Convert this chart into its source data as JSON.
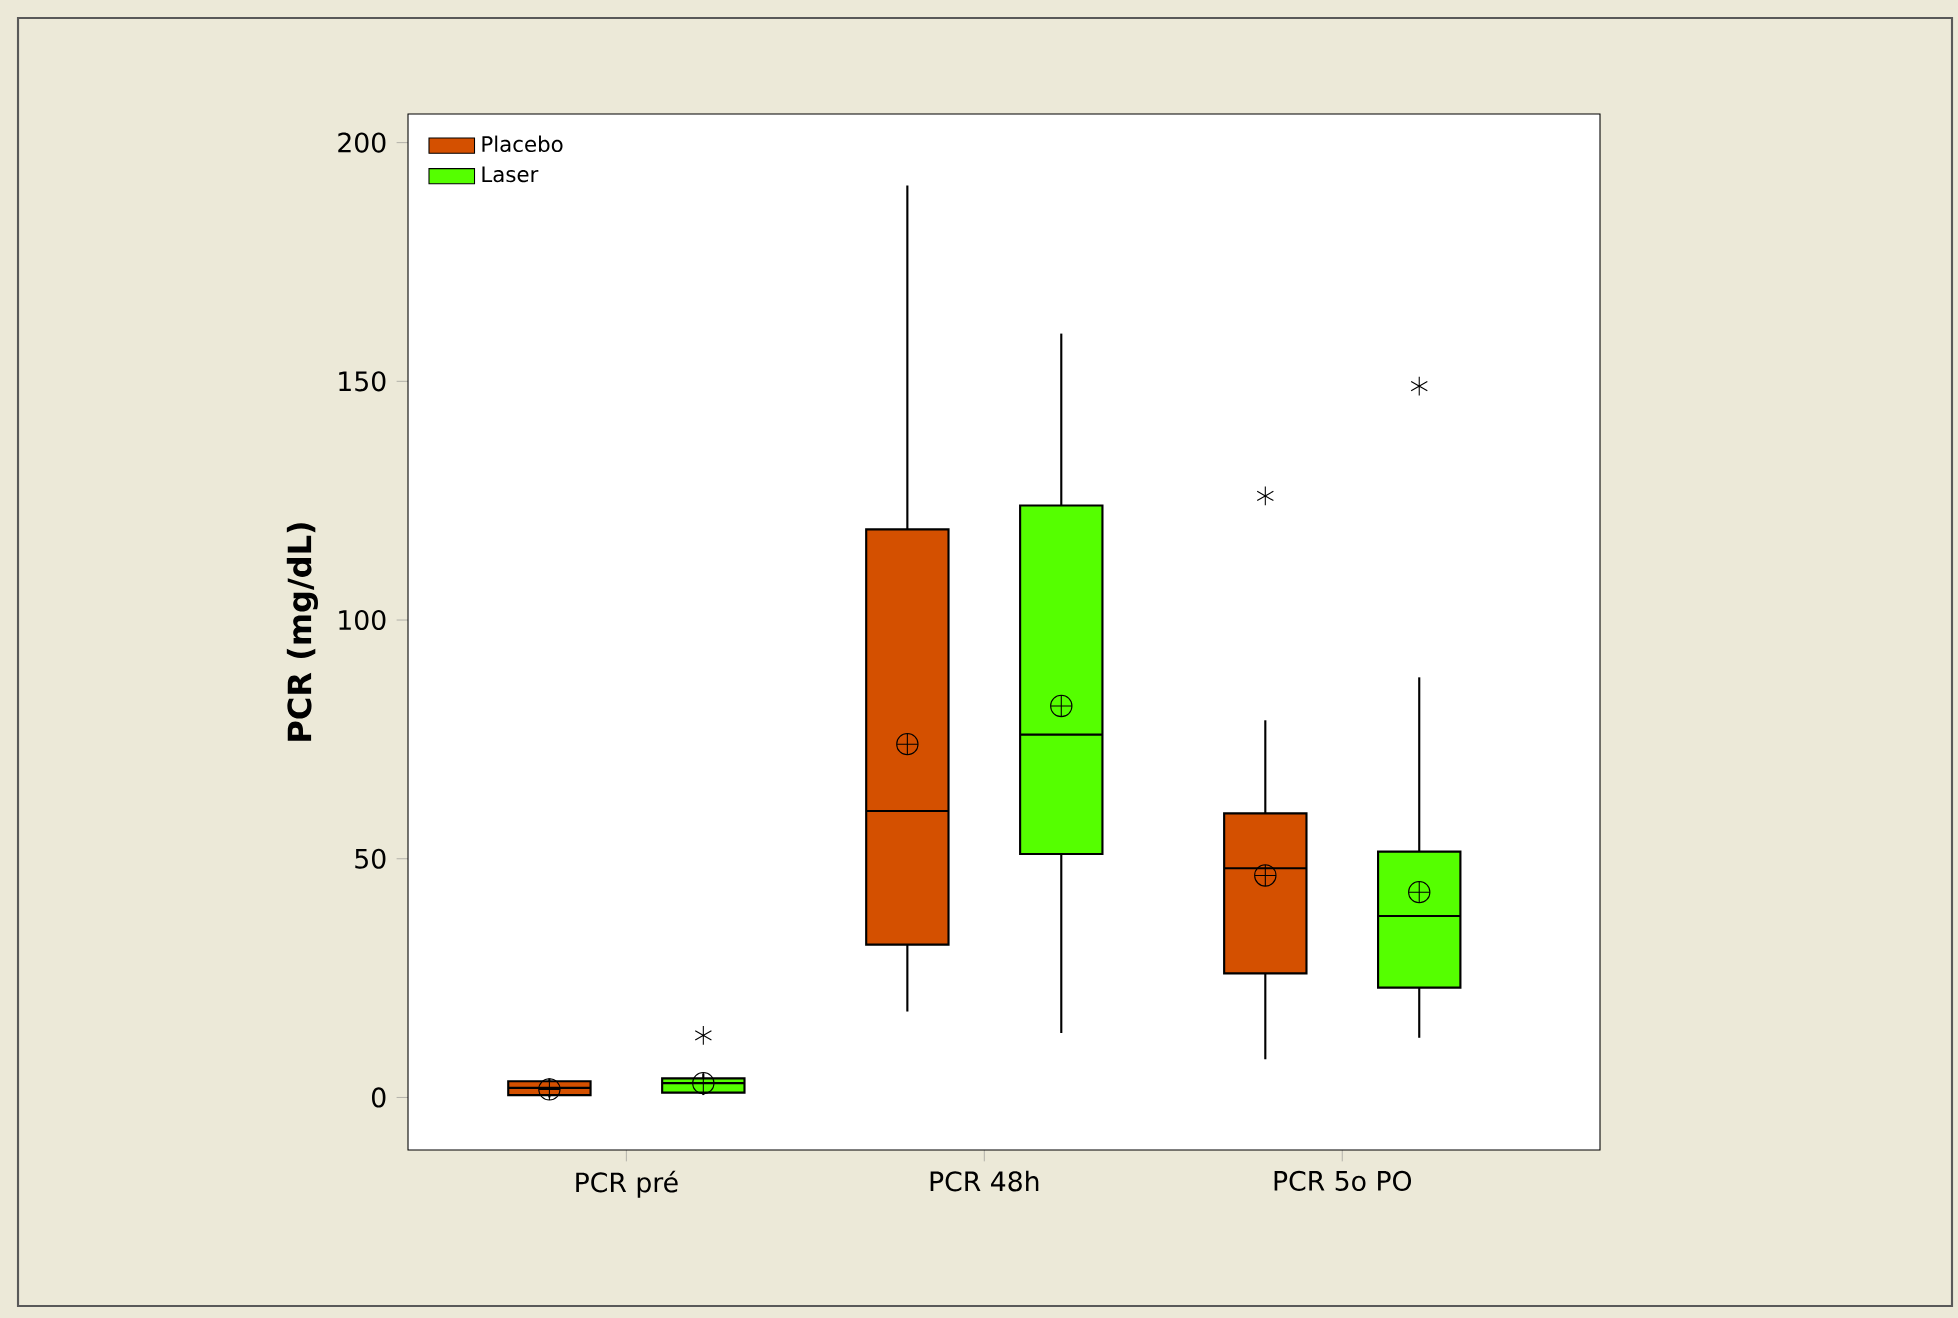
{
  "chart_data": {
    "type": "box",
    "ylabel": "PCR (mg/dL)",
    "categories": [
      "PCR pré",
      "PCR 48h",
      "PCR 5o PO"
    ],
    "ylim": [
      -11,
      206
    ],
    "yticks": [
      0,
      50,
      100,
      150,
      200
    ],
    "legend": "top left",
    "series": [
      {
        "name": "Placebo",
        "color": "#d45000",
        "boxes": [
          {
            "low": 0,
            "q1": 0.5,
            "median": 2,
            "q3": 3.4,
            "high": 4,
            "mean": 1.7
          },
          {
            "low": 18,
            "q1": 32,
            "median": 60,
            "q3": 119,
            "high": 191,
            "mean": 74
          },
          {
            "low": 8,
            "q1": 26,
            "median": 48,
            "q3": 59.5,
            "high": 79,
            "mean": 46.5,
            "outliers": [
              126
            ]
          }
        ]
      },
      {
        "name": "Laser",
        "color": "#55ff00",
        "boxes": [
          {
            "low": 0.5,
            "q1": 1,
            "median": 3,
            "q3": 4,
            "high": 5,
            "mean": 3,
            "outliers": [
              13
            ]
          },
          {
            "low": 13.5,
            "q1": 51,
            "median": 76,
            "q3": 124,
            "high": 160,
            "mean": 82
          },
          {
            "low": 12.5,
            "q1": 23,
            "median": 38,
            "q3": 51.5,
            "high": 88,
            "mean": 43,
            "outliers": [
              149
            ]
          }
        ]
      }
    ]
  }
}
